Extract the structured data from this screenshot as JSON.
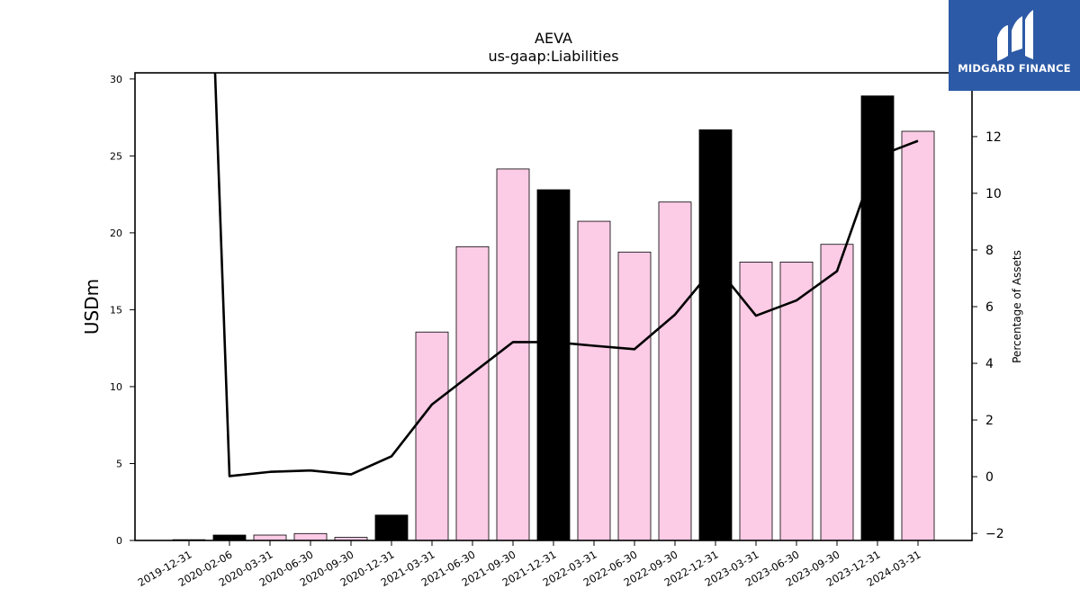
{
  "header": {
    "title": "AEVA",
    "subtitle": "us-gaap:Liabilities"
  },
  "logo": {
    "text": "MIDGARD FINANCE",
    "background": "#2d5aa6"
  },
  "chart_data": {
    "type": "bar",
    "categories": [
      "2019-12-31",
      "2020-02-06",
      "2020-03-31",
      "2020-06-30",
      "2020-09-30",
      "2020-12-31",
      "2021-03-31",
      "2021-06-30",
      "2021-09-30",
      "2021-12-31",
      "2022-03-31",
      "2022-06-30",
      "2022-09-30",
      "2022-12-31",
      "2023-03-31",
      "2023-06-30",
      "2023-09-30",
      "2023-12-31",
      "2024-03-31"
    ],
    "bar_values": [
      0.05,
      0.35,
      0.35,
      0.45,
      0.2,
      1.65,
      13.55,
      19.1,
      24.15,
      22.8,
      20.75,
      18.75,
      22.0,
      26.7,
      18.1,
      18.1,
      19.25,
      28.9,
      26.6
    ],
    "bar_colors": [
      "#000000",
      "#000000",
      "#fccbe6",
      "#fccbe6",
      "#fccbe6",
      "#000000",
      "#fccbe6",
      "#fccbe6",
      "#fccbe6",
      "#000000",
      "#fccbe6",
      "#fccbe6",
      "#fccbe6",
      "#000000",
      "#fccbe6",
      "#fccbe6",
      "#fccbe6",
      "#000000",
      "#fccbe6"
    ],
    "line_values": [
      40.0,
      0.02,
      0.17,
      0.22,
      0.08,
      0.72,
      2.55,
      3.65,
      4.75,
      4.75,
      4.62,
      4.5,
      5.72,
      7.45,
      5.68,
      6.22,
      7.25,
      11.3,
      11.85
    ],
    "ylabel": "USDm",
    "y2label": "Percentage of Assets",
    "ylim": [
      0,
      30.4
    ],
    "y2lim": [
      -2.25,
      14.25
    ],
    "yticks": [
      0,
      5,
      10,
      15,
      20,
      25,
      30
    ],
    "y2ticks": [
      -2,
      0,
      2,
      4,
      6,
      8,
      10,
      12
    ],
    "y2tick_labels": [
      "−2",
      "0",
      "2",
      "4",
      "6",
      "8",
      "10",
      "12"
    ],
    "grid": false
  }
}
